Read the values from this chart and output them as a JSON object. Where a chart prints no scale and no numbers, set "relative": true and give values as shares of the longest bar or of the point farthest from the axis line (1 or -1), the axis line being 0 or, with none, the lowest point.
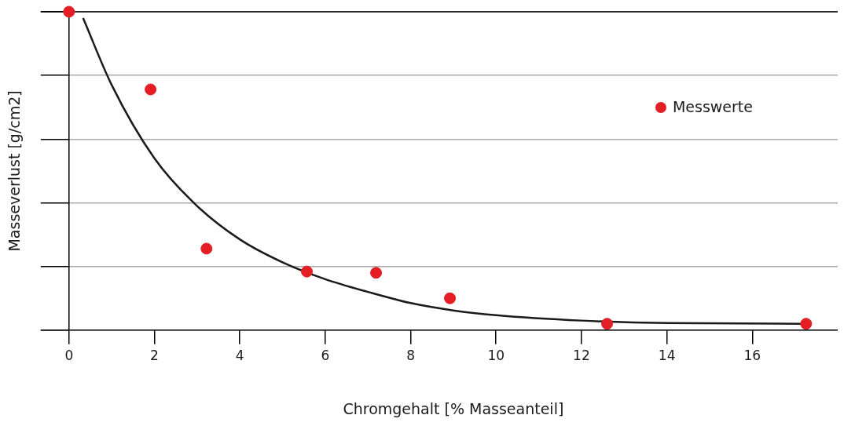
{
  "chart_data": {
    "type": "scatter",
    "xlabel": "Chromgehalt [% Masseanteil]",
    "ylabel": "Masseverlust [g/cm2]",
    "relative": true,
    "xlim": [
      0,
      18
    ],
    "xticks": [
      0,
      2,
      4,
      6,
      8,
      10,
      12,
      14,
      16
    ],
    "grid": "y",
    "legend": "top right",
    "marker": "circle",
    "series": [
      {
        "name": "Messwerte",
        "color": "#e31e24",
        "x": [
          0,
          1.91,
          3.22,
          5.57,
          7.19,
          8.92,
          12.6,
          17.26
        ],
        "values": [
          1,
          0.756,
          0.256,
          0.184,
          0.18,
          0.1,
          0.02,
          0.02
        ]
      },
      {
        "type": "line",
        "color": "#1a1a1a",
        "line_style": "solid",
        "marker": "none",
        "x": [
          0.33,
          1,
          2,
          3,
          4,
          5,
          6,
          7,
          8,
          9,
          10,
          12,
          14,
          17.2
        ],
        "values": [
          0.98,
          0.77,
          0.54,
          0.39,
          0.285,
          0.213,
          0.16,
          0.12,
          0.085,
          0.062,
          0.047,
          0.03,
          0.022,
          0.02
        ]
      }
    ]
  }
}
